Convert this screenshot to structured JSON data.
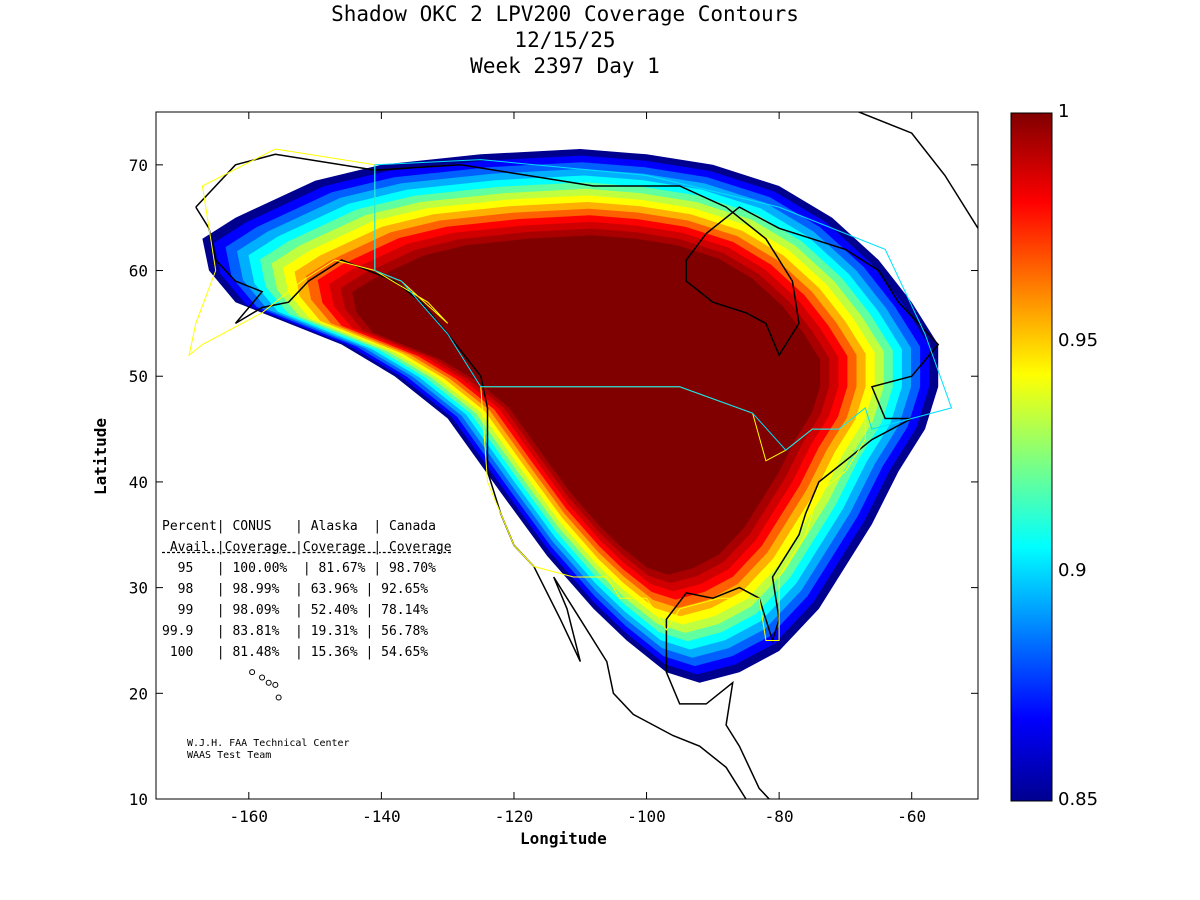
{
  "title": {
    "line1": "Shadow OKC 2 LPV200 Coverage Contours",
    "line2": "12/15/25",
    "line3": "Week 2397 Day 1"
  },
  "axes": {
    "xlabel": "Longitude",
    "ylabel": "Latitude",
    "xlim": [
      -174,
      -50
    ],
    "ylim": [
      10,
      75
    ],
    "xticks": [
      -160,
      -140,
      -120,
      -100,
      -80,
      -60
    ],
    "yticks": [
      10,
      20,
      30,
      40,
      50,
      60,
      70
    ],
    "xtick_labels": [
      "-160",
      "-140",
      "-120",
      "-100",
      "-80",
      "-60"
    ],
    "ytick_labels": [
      "10",
      "20",
      "30",
      "40",
      "50",
      "60",
      "70"
    ]
  },
  "colorbar": {
    "range": [
      0.85,
      1
    ],
    "tick_values": [
      0.85,
      0.9,
      0.95,
      1
    ],
    "tick_labels": [
      "0.85",
      "0.9",
      "0.95",
      "1"
    ],
    "colormap": "jet"
  },
  "coverage_region": {
    "core_level": 1.0,
    "edge_level": 0.85,
    "outline": [
      [
        -167,
        63
      ],
      [
        -162,
        65
      ],
      [
        -150,
        68.5
      ],
      [
        -140,
        70
      ],
      [
        -125,
        71
      ],
      [
        -110,
        71.5
      ],
      [
        -100,
        71
      ],
      [
        -90,
        70
      ],
      [
        -80,
        68
      ],
      [
        -72,
        65
      ],
      [
        -65,
        61
      ],
      [
        -60,
        57
      ],
      [
        -56,
        53
      ],
      [
        -56,
        49
      ],
      [
        -58,
        45
      ],
      [
        -62,
        41
      ],
      [
        -66,
        36
      ],
      [
        -70,
        32
      ],
      [
        -74,
        28
      ],
      [
        -80,
        24
      ],
      [
        -86,
        22
      ],
      [
        -92,
        21
      ],
      [
        -97,
        22
      ],
      [
        -103,
        25
      ],
      [
        -108,
        28
      ],
      [
        -115,
        33
      ],
      [
        -122,
        39
      ],
      [
        -130,
        46
      ],
      [
        -138,
        50
      ],
      [
        -146,
        53
      ],
      [
        -154,
        55
      ],
      [
        -162,
        57
      ],
      [
        -166,
        60
      ]
    ]
  },
  "stats_table": {
    "header": [
      "Percent| CONUS   | Alaska  | Canada",
      " Avail.|Coverage |Coverage | Coverage"
    ],
    "rows": [
      "  95   | 100.00%  | 81.67% | 98.70%",
      "  98   | 98.99%  | 63.96% | 92.65%",
      "  99   | 98.09%  | 52.40% | 78.14%",
      "99.9   | 83.81%  | 19.31% | 56.78%",
      " 100   | 81.48%  | 15.36% | 54.65%"
    ]
  },
  "credit": {
    "line1": "W.J.H. FAA Technical Center",
    "line2": "WAAS Test Team"
  },
  "colors": {
    "core": "#800000",
    "frame": "#000000",
    "boundary_yellow": "#ffff00",
    "boundary_cyan": "#00e0ff"
  }
}
